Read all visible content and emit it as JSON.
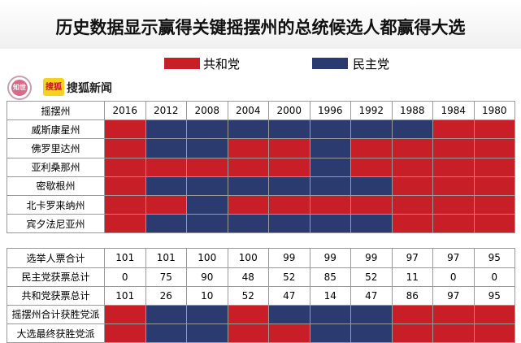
{
  "title": "历史数据显示赢得关键摇摆州的总统候选人都赢得大选",
  "legend": [
    {
      "label": "共和党",
      "color": "#c81e28"
    },
    {
      "label": "民主党",
      "color": "#2b3b70"
    }
  ],
  "logo_badge": "知世",
  "brand": {
    "icon_text": "搜狐",
    "name": "搜狐新闻"
  },
  "colors": {
    "R": "#c81e28",
    "D": "#2b3b70"
  },
  "chart_data": {
    "type": "table",
    "header_label": "摇摆州",
    "years": [
      "2016",
      "2012",
      "2008",
      "2004",
      "2000",
      "1996",
      "1992",
      "1988",
      "1984",
      "1980"
    ],
    "states": [
      {
        "name": "威斯康星州",
        "winners": [
          "R",
          "D",
          "D",
          "D",
          "D",
          "D",
          "D",
          "D",
          "R",
          "R"
        ]
      },
      {
        "name": "佛罗里达州",
        "winners": [
          "R",
          "D",
          "D",
          "R",
          "R",
          "D",
          "R",
          "R",
          "R",
          "R"
        ]
      },
      {
        "name": "亚利桑那州",
        "winners": [
          "R",
          "R",
          "R",
          "R",
          "R",
          "D",
          "R",
          "R",
          "R",
          "R"
        ]
      },
      {
        "name": "密歇根州",
        "winners": [
          "R",
          "D",
          "D",
          "D",
          "D",
          "D",
          "D",
          "R",
          "R",
          "R"
        ]
      },
      {
        "name": "北卡罗来纳州",
        "winners": [
          "R",
          "R",
          "D",
          "R",
          "R",
          "R",
          "R",
          "R",
          "R",
          "R"
        ]
      },
      {
        "name": "宾夕法尼亚州",
        "winners": [
          "R",
          "D",
          "D",
          "D",
          "D",
          "D",
          "D",
          "R",
          "R",
          "R"
        ]
      }
    ],
    "totals": [
      {
        "label": "选举人票合计",
        "values": [
          "101",
          "101",
          "100",
          "100",
          "99",
          "99",
          "99",
          "97",
          "97",
          "95"
        ]
      },
      {
        "label": "民主党获票总计",
        "values": [
          "0",
          "75",
          "90",
          "48",
          "52",
          "85",
          "52",
          "11",
          "0",
          "0"
        ]
      },
      {
        "label": "共和党获票总计",
        "values": [
          "101",
          "26",
          "10",
          "52",
          "47",
          "14",
          "47",
          "86",
          "97",
          "95"
        ]
      }
    ],
    "outcome_rows": [
      {
        "label": "摇摆州合计获胜党派",
        "winners": [
          "R",
          "D",
          "D",
          "R",
          "D",
          "D",
          "D",
          "R",
          "R",
          "R"
        ]
      },
      {
        "label": "大选最终获胜党派",
        "winners": [
          "R",
          "D",
          "D",
          "R",
          "R",
          "D",
          "D",
          "R",
          "R",
          "R"
        ]
      }
    ]
  }
}
